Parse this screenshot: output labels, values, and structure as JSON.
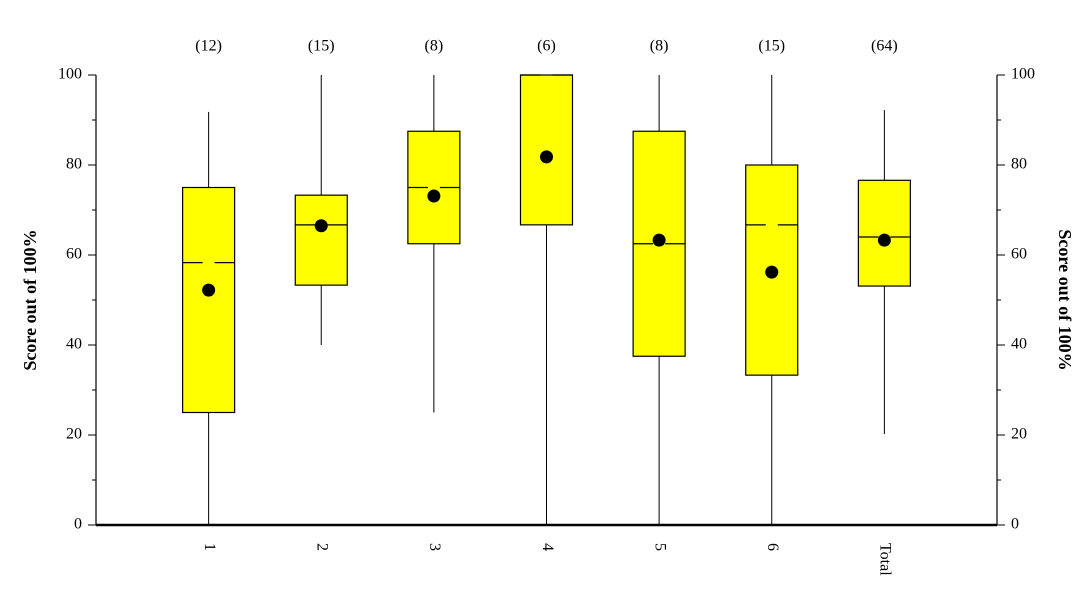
{
  "chart_data": {
    "type": "box",
    "y_label": "Score out of 100%",
    "y2_label": "Score out of 100%",
    "categories": [
      "1",
      "2",
      "3",
      "4",
      "5",
      "6",
      "Total"
    ],
    "count_labels": [
      "(12)",
      "(15)",
      "(8)",
      "(6)",
      "(8)",
      "(15)",
      "(64)"
    ],
    "whisker_low": [
      0,
      40,
      25,
      0,
      0,
      0,
      20.2
    ],
    "q1": [
      25,
      53.3,
      62.5,
      66.7,
      37.5,
      33.3,
      53.1
    ],
    "median": [
      58.3,
      66.7,
      75,
      100,
      62.5,
      66.7,
      64
    ],
    "q3": [
      75,
      73.3,
      87.5,
      100,
      87.5,
      80,
      76.6
    ],
    "whisker_high": [
      91.8,
      100,
      100,
      100,
      100,
      100,
      92.2
    ],
    "mean": [
      52.2,
      66.5,
      73.1,
      81.8,
      63.3,
      56.2,
      63.3
    ],
    "box_color": "#ffff00",
    "mean_color": "#000000",
    "ylim": [
      0,
      100
    ],
    "yticks": [
      0,
      20,
      40,
      60,
      80,
      100
    ],
    "minor_yticks": [
      10,
      30,
      50,
      70,
      90
    ],
    "y2lim": [
      0,
      100
    ],
    "y2ticks": [
      0,
      20,
      40,
      60,
      80,
      100
    ]
  }
}
